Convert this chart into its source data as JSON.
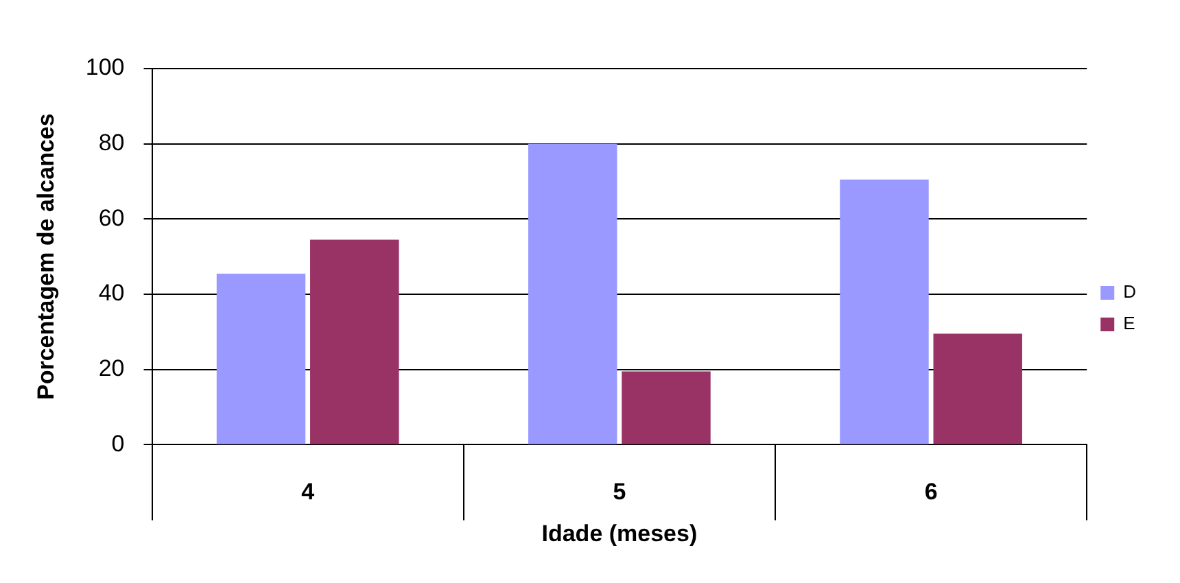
{
  "chart_data": {
    "type": "bar",
    "xlabel": "Idade (meses)",
    "ylabel": "Porcentagem de alcances",
    "categories": [
      "4",
      "5",
      "6"
    ],
    "series": [
      {
        "name": "D",
        "color": "#9999ff",
        "values": [
          45.5,
          80,
          70.5
        ]
      },
      {
        "name": "E",
        "color": "#993366",
        "values": [
          54.5,
          19.5,
          29.5
        ]
      }
    ],
    "ylim": [
      0,
      100
    ],
    "yticks": [
      0,
      20,
      40,
      60,
      80,
      100
    ],
    "grid": "y",
    "legend": "right"
  }
}
